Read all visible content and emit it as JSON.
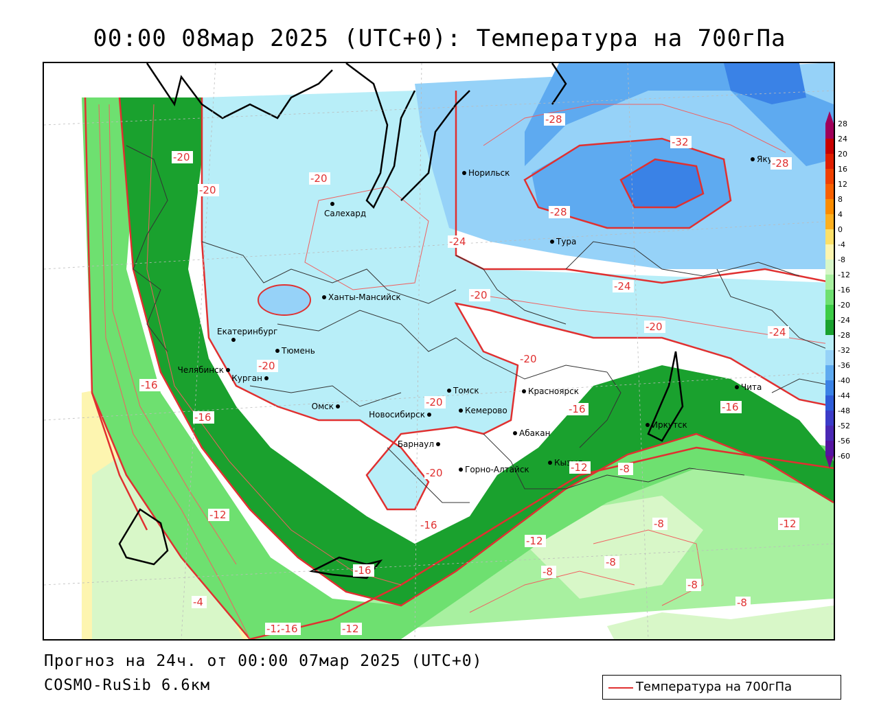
{
  "title": "00:00 08мар 2025 (UTC+0): Температура на 700гПа",
  "footer": {
    "forecast": "Прогноз на 24ч. от 00:00 07мар 2025 (UTC+0)",
    "model": "COSMO-RuSib 6.6км"
  },
  "legend": {
    "label": "Температура на 700гПа",
    "line_color": "#e03030"
  },
  "colorbar": {
    "labels": [
      "28",
      "24",
      "20",
      "16",
      "12",
      "8",
      "4",
      "0",
      "-4",
      "-8",
      "-12",
      "-16",
      "-20",
      "-24",
      "-28",
      "-32",
      "-36",
      "-40",
      "-44",
      "-48",
      "-52",
      "-56",
      "-60"
    ],
    "colors": [
      "#a0005a",
      "#c80000",
      "#e01e00",
      "#f04000",
      "#f86000",
      "#fc8c00",
      "#fdb020",
      "#fde068",
      "#fdf5b0",
      "#d8f7c8",
      "#a8f0a0",
      "#6ee070",
      "#3ccc46",
      "#1aa12e",
      "#b8eef8",
      "#96d2f8",
      "#5eaaf0",
      "#3a82e6",
      "#2e5cd8",
      "#3c3cc8",
      "#4a28b4",
      "#5414a0",
      "#6a0a8c"
    ]
  },
  "cities": [
    {
      "name": "Норильск"
    },
    {
      "name": "Якутск"
    },
    {
      "name": "Салехард"
    },
    {
      "name": "Тура"
    },
    {
      "name": "Ханты-Мансийск"
    },
    {
      "name": "Екатеринбург"
    },
    {
      "name": "Тюмень"
    },
    {
      "name": "Челябинск"
    },
    {
      "name": "Курган"
    },
    {
      "name": "Омск"
    },
    {
      "name": "Томск"
    },
    {
      "name": "Новосибирск"
    },
    {
      "name": "Кемерово"
    },
    {
      "name": "Красноярск"
    },
    {
      "name": "Барнаул"
    },
    {
      "name": "Абакан"
    },
    {
      "name": "Горно-Алтайск"
    },
    {
      "name": "Кызыл"
    },
    {
      "name": "Иркутск"
    },
    {
      "name": "Чита"
    }
  ],
  "isotherm_labels": [
    {
      "value": "-20"
    },
    {
      "value": "-20"
    },
    {
      "value": "-20"
    },
    {
      "value": "-28"
    },
    {
      "value": "-32"
    },
    {
      "value": "-28"
    },
    {
      "value": "-28"
    },
    {
      "value": "-24"
    },
    {
      "value": "-20"
    },
    {
      "value": "-24"
    },
    {
      "value": "-20"
    },
    {
      "value": "-24"
    },
    {
      "value": "-20"
    },
    {
      "value": "-20"
    },
    {
      "value": "-20"
    },
    {
      "value": "-16"
    },
    {
      "value": "-16"
    },
    {
      "value": "-16"
    },
    {
      "value": "-16"
    },
    {
      "value": "-12"
    },
    {
      "value": "-16"
    },
    {
      "value": "-12"
    },
    {
      "value": "-8"
    },
    {
      "value": "-12"
    },
    {
      "value": "-8"
    },
    {
      "value": "-12"
    },
    {
      "value": "-8"
    },
    {
      "value": "-8"
    },
    {
      "value": "-8"
    },
    {
      "value": "-8"
    },
    {
      "value": "-16"
    },
    {
      "value": "-4"
    },
    {
      "value": "-12"
    },
    {
      "value": "-12"
    },
    {
      "value": "-20"
    },
    {
      "value": "-16"
    }
  ]
}
